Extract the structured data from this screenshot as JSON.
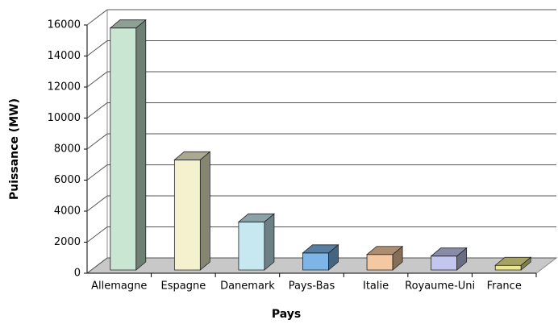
{
  "chart_data": {
    "type": "bar3d",
    "categories": [
      "Allemagne",
      "Espagne",
      "Danemark",
      "Pays-Bas",
      "Italie",
      "Royaume-Uni",
      "France"
    ],
    "values": [
      15600,
      7100,
      3100,
      1100,
      1000,
      900,
      300
    ],
    "colors": [
      "#c8e6d2",
      "#f4f1cf",
      "#c8e8f1",
      "#7db6e6",
      "#f4c9a2",
      "#c3c6ee",
      "#ece88f"
    ],
    "ylim": [
      0,
      16000
    ],
    "yticks": [
      0,
      2000,
      4000,
      6000,
      8000,
      10000,
      12000,
      14000,
      16000
    ],
    "xlabel": "Pays",
    "ylabel": "Puissance (MW)",
    "grid": true
  }
}
